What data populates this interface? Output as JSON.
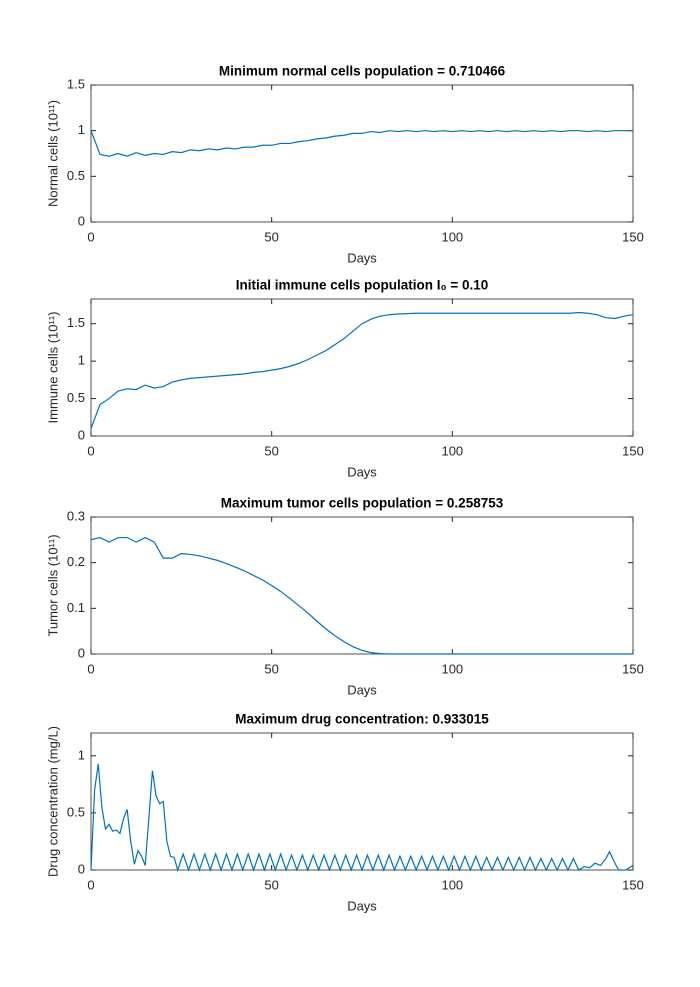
{
  "chart_data": [
    {
      "type": "line",
      "title": "Minimum normal cells population = 0.710466",
      "xlabel": "Days",
      "ylabel": "Normal cells (10¹¹)",
      "color": "#0072bd",
      "xlim": [
        0,
        150
      ],
      "xticks": [
        0,
        50,
        100,
        150
      ],
      "ylim": [
        0,
        1.5
      ],
      "yticks": [
        0,
        0.5,
        1,
        1.5
      ],
      "x": [
        0,
        2.5,
        5,
        7.5,
        10,
        12.5,
        15,
        17.5,
        20,
        22.5,
        25,
        27.5,
        30,
        32.5,
        35,
        37.5,
        40,
        42.5,
        45,
        47.5,
        50,
        52.5,
        55,
        57.5,
        60,
        62.5,
        65,
        67.5,
        70,
        72.5,
        75,
        77.5,
        80,
        82.5,
        85,
        87.5,
        90,
        92.5,
        95,
        97.5,
        100,
        102.5,
        105,
        107.5,
        110,
        112.5,
        115,
        117.5,
        120,
        122.5,
        125,
        127.5,
        130,
        132.5,
        135,
        137.5,
        140,
        142.5,
        145,
        147.5,
        150
      ],
      "values": [
        1.0,
        0.74,
        0.72,
        0.75,
        0.72,
        0.76,
        0.73,
        0.75,
        0.74,
        0.77,
        0.76,
        0.79,
        0.78,
        0.8,
        0.79,
        0.81,
        0.8,
        0.82,
        0.82,
        0.84,
        0.84,
        0.86,
        0.86,
        0.88,
        0.89,
        0.91,
        0.92,
        0.94,
        0.95,
        0.97,
        0.97,
        0.99,
        0.98,
        1.0,
        0.99,
        1.0,
        0.99,
        1.0,
        0.99,
        1.0,
        0.99,
        1.0,
        0.99,
        1.0,
        0.99,
        1.0,
        0.99,
        1.0,
        0.99,
        1.0,
        0.99,
        1.0,
        0.99,
        1.0,
        1.0,
        0.99,
        1.0,
        0.99,
        1.0,
        1.0,
        1.0
      ]
    },
    {
      "type": "line",
      "title": "Initial immune cells population I₀ = 0.10",
      "xlabel": "Days",
      "ylabel": "Immune cells (10¹¹)",
      "color": "#0072bd",
      "xlim": [
        0,
        150
      ],
      "xticks": [
        0,
        50,
        100,
        150
      ],
      "ylim": [
        0,
        1.83
      ],
      "yticks": [
        0,
        0.5,
        1,
        1.5
      ],
      "x": [
        0,
        2.5,
        5,
        7.5,
        10,
        12.5,
        15,
        17.5,
        20,
        22.5,
        25,
        27.5,
        30,
        32.5,
        35,
        37.5,
        40,
        42.5,
        45,
        47.5,
        50,
        52.5,
        55,
        57.5,
        60,
        62.5,
        65,
        67.5,
        70,
        72.5,
        75,
        77.5,
        80,
        82.5,
        85,
        87.5,
        90,
        92.5,
        95,
        97.5,
        100,
        102.5,
        105,
        107.5,
        110,
        112.5,
        115,
        117.5,
        120,
        122.5,
        125,
        127.5,
        130,
        132.5,
        135,
        137.5,
        140,
        142.5,
        145,
        147.5,
        150
      ],
      "values": [
        0.1,
        0.42,
        0.5,
        0.6,
        0.63,
        0.62,
        0.68,
        0.64,
        0.66,
        0.72,
        0.75,
        0.77,
        0.78,
        0.79,
        0.8,
        0.81,
        0.82,
        0.83,
        0.85,
        0.86,
        0.88,
        0.9,
        0.93,
        0.97,
        1.02,
        1.08,
        1.14,
        1.22,
        1.3,
        1.4,
        1.5,
        1.56,
        1.6,
        1.62,
        1.63,
        1.635,
        1.64,
        1.64,
        1.64,
        1.64,
        1.64,
        1.64,
        1.64,
        1.64,
        1.64,
        1.64,
        1.64,
        1.64,
        1.64,
        1.64,
        1.64,
        1.64,
        1.64,
        1.64,
        1.65,
        1.64,
        1.62,
        1.58,
        1.57,
        1.6,
        1.62
      ]
    },
    {
      "type": "line",
      "title": "Maximum tumor cells population = 0.258753",
      "xlabel": "Days",
      "ylabel": "Tumor cells (10¹¹)",
      "color": "#0072bd",
      "xlim": [
        0,
        150
      ],
      "xticks": [
        0,
        50,
        100,
        150
      ],
      "ylim": [
        0,
        0.3
      ],
      "yticks": [
        0,
        0.1,
        0.2,
        0.3
      ],
      "x": [
        0,
        2.5,
        5,
        7.5,
        10,
        12.5,
        15,
        17.5,
        20,
        22.5,
        25,
        27.5,
        30,
        32.5,
        35,
        37.5,
        40,
        42.5,
        45,
        47.5,
        50,
        52.5,
        55,
        57.5,
        60,
        62.5,
        65,
        67.5,
        70,
        72.5,
        75,
        77.5,
        80,
        82.5,
        85,
        87.5,
        90,
        92.5,
        95,
        97.5,
        100,
        102.5,
        105,
        107.5,
        110,
        112.5,
        115,
        117.5,
        120,
        122.5,
        125,
        127.5,
        130,
        132.5,
        135,
        137.5,
        140,
        142.5,
        145,
        147.5,
        150
      ],
      "values": [
        0.25,
        0.255,
        0.245,
        0.255,
        0.255,
        0.245,
        0.255,
        0.245,
        0.21,
        0.21,
        0.22,
        0.218,
        0.215,
        0.21,
        0.205,
        0.198,
        0.19,
        0.182,
        0.172,
        0.162,
        0.15,
        0.137,
        0.122,
        0.106,
        0.09,
        0.072,
        0.055,
        0.04,
        0.027,
        0.016,
        0.008,
        0.003,
        0.001,
        0,
        0,
        0,
        0,
        0,
        0,
        0,
        0,
        0,
        0,
        0,
        0,
        0,
        0,
        0,
        0,
        0,
        0,
        0,
        0,
        0,
        0,
        0,
        0,
        0,
        0,
        0,
        0
      ]
    },
    {
      "type": "line",
      "title": "Maximum drug concentration: 0.933015",
      "xlabel": "Days",
      "ylabel": "Drug concentration (mg/L)",
      "color": "#0072bd",
      "xlim": [
        0,
        150
      ],
      "xticks": [
        0,
        50,
        100,
        150
      ],
      "ylim": [
        0,
        1.2
      ],
      "yticks": [
        0,
        0.5,
        1
      ],
      "x": [
        0,
        1,
        2,
        3,
        4,
        5,
        6,
        7,
        8,
        9,
        10,
        11,
        12,
        13,
        14,
        15,
        16,
        17,
        18,
        19,
        20,
        21,
        22,
        23,
        24,
        25.5,
        27,
        28.5,
        30,
        31.5,
        33,
        34.5,
        36,
        37.5,
        39,
        40.5,
        42,
        43.5,
        45,
        46.5,
        48,
        49.5,
        51,
        52.5,
        54,
        55.5,
        57,
        58.5,
        60,
        61.5,
        63,
        64.5,
        66,
        67.5,
        69,
        70.5,
        72,
        73.5,
        75,
        76.5,
        78,
        79.5,
        81,
        82.5,
        84,
        85.5,
        87,
        88.5,
        90,
        91.5,
        93,
        94.5,
        96,
        97.5,
        99,
        100.5,
        102,
        103.5,
        105,
        106.5,
        108,
        109.5,
        111,
        112.5,
        114,
        115.5,
        117,
        118.5,
        120,
        121.5,
        123,
        124.5,
        126,
        127.5,
        129,
        130.5,
        132,
        133.5,
        135,
        136.5,
        138,
        139.5,
        141,
        142.5,
        143.5,
        145,
        146,
        148,
        150
      ],
      "values": [
        0,
        0.7,
        0.93,
        0.55,
        0.36,
        0.4,
        0.34,
        0.35,
        0.32,
        0.45,
        0.53,
        0.25,
        0.05,
        0.17,
        0.12,
        0.04,
        0.45,
        0.87,
        0.65,
        0.58,
        0.6,
        0.25,
        0.12,
        0.11,
        0,
        0.14,
        0,
        0.14,
        0,
        0.14,
        0,
        0.14,
        0,
        0.14,
        0,
        0.14,
        0,
        0.14,
        0,
        0.14,
        0,
        0.14,
        0,
        0.14,
        0,
        0.13,
        0,
        0.13,
        0,
        0.13,
        0,
        0.13,
        0,
        0.13,
        0,
        0.13,
        0,
        0.13,
        0,
        0.13,
        0,
        0.13,
        0,
        0.13,
        0,
        0.12,
        0,
        0.12,
        0,
        0.12,
        0,
        0.12,
        0,
        0.12,
        0,
        0.12,
        0,
        0.12,
        0,
        0.12,
        0,
        0.11,
        0,
        0.11,
        0,
        0.11,
        0,
        0.11,
        0,
        0.11,
        0,
        0.1,
        0,
        0.1,
        0,
        0.1,
        0,
        0.1,
        0,
        0.03,
        0.02,
        0.06,
        0.04,
        0.1,
        0.16,
        0.06,
        0,
        0,
        0.04
      ]
    }
  ]
}
